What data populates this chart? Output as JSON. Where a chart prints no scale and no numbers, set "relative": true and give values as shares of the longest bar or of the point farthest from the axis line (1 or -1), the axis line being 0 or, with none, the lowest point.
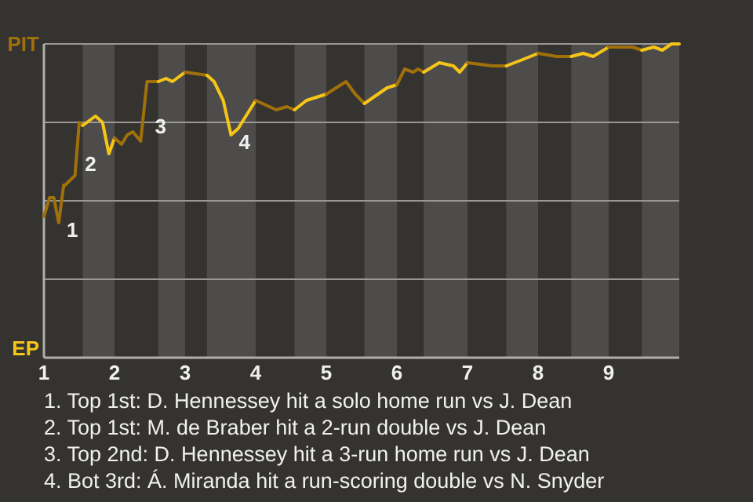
{
  "chart_data": {
    "type": "line",
    "relative": true,
    "xlim": [
      1,
      10
    ],
    "xticks": [
      1,
      2,
      3,
      4,
      5,
      6,
      7,
      8,
      9
    ],
    "marker": "none",
    "line_style": "solid",
    "bands": [
      {
        "axis": "x",
        "from": 1.55,
        "to": 2,
        "color": "#4d4c4a"
      },
      {
        "axis": "x",
        "from": 2.62,
        "to": 3,
        "color": "#4d4c4a"
      },
      {
        "axis": "x",
        "from": 3.31,
        "to": 4,
        "color": "#4d4c4a"
      },
      {
        "axis": "x",
        "from": 4.55,
        "to": 5,
        "color": "#4d4c4a"
      },
      {
        "axis": "x",
        "from": 5.54,
        "to": 6,
        "color": "#4d4c4a"
      },
      {
        "axis": "x",
        "from": 6.38,
        "to": 7,
        "color": "#4d4c4a"
      },
      {
        "axis": "x",
        "from": 7.55,
        "to": 8,
        "color": "#4d4c4a"
      },
      {
        "axis": "x",
        "from": 8.47,
        "to": 9,
        "color": "#4d4c4a"
      },
      {
        "axis": "x",
        "from": 9.47,
        "to": 10,
        "color": "#4d4c4a"
      }
    ],
    "ref_lines": [
      {
        "axis": "y",
        "value": 0.25,
        "color": "#9a9895"
      },
      {
        "axis": "y",
        "value": 0.5,
        "color": "#9a9895"
      },
      {
        "axis": "y",
        "value": 0.75,
        "color": "#9a9895"
      }
    ],
    "series": [
      {
        "color": "#a0700a",
        "x": [
          1,
          1.08,
          1.14,
          1.21,
          1.28,
          1.3,
          1.39,
          1.44,
          1.5,
          1.55
        ],
        "values": [
          0.45,
          0.51,
          0.51,
          0.43,
          0.55,
          0.55,
          0.57,
          0.58,
          0.75,
          0.74
        ]
      },
      {
        "color": "#f5c518",
        "x": [
          1.55,
          1.73,
          1.83,
          1.92,
          2
        ],
        "values": [
          0.74,
          0.77,
          0.75,
          0.65,
          0.7
        ]
      },
      {
        "color": "#a0700a",
        "x": [
          2,
          2.1,
          2.18,
          2.26,
          2.37,
          2.46,
          2.62
        ],
        "values": [
          0.7,
          0.68,
          0.71,
          0.72,
          0.69,
          0.88,
          0.88
        ]
      },
      {
        "color": "#f5c518",
        "x": [
          2.62,
          2.73,
          2.82,
          3
        ],
        "values": [
          0.88,
          0.89,
          0.88,
          0.91
        ]
      },
      {
        "color": "#a0700a",
        "x": [
          3,
          3.31
        ],
        "values": [
          0.91,
          0.9
        ]
      },
      {
        "color": "#f5c518",
        "x": [
          3.31,
          3.41,
          3.54,
          3.65,
          3.75,
          4
        ],
        "values": [
          0.9,
          0.88,
          0.82,
          0.71,
          0.73,
          0.82
        ]
      },
      {
        "color": "#a0700a",
        "x": [
          4,
          4.29,
          4.44,
          4.55
        ],
        "values": [
          0.82,
          0.79,
          0.8,
          0.79
        ]
      },
      {
        "color": "#f5c518",
        "x": [
          4.55,
          4.72,
          5
        ],
        "values": [
          0.79,
          0.82,
          0.84
        ]
      },
      {
        "color": "#a0700a",
        "x": [
          5,
          5.28,
          5.41,
          5.54
        ],
        "values": [
          0.84,
          0.88,
          0.84,
          0.81
        ]
      },
      {
        "color": "#f5c518",
        "x": [
          5.54,
          5.86,
          6
        ],
        "values": [
          0.81,
          0.86,
          0.87
        ]
      },
      {
        "color": "#a0700a",
        "x": [
          6,
          6.11,
          6.23,
          6.3,
          6.38
        ],
        "values": [
          0.87,
          0.92,
          0.91,
          0.92,
          0.91
        ]
      },
      {
        "color": "#f5c518",
        "x": [
          6.38,
          6.6,
          6.8,
          6.89,
          7
        ],
        "values": [
          0.91,
          0.94,
          0.93,
          0.91,
          0.94
        ]
      },
      {
        "color": "#a0700a",
        "x": [
          7,
          7.35,
          7.55
        ],
        "values": [
          0.94,
          0.93,
          0.93
        ]
      },
      {
        "color": "#f5c518",
        "x": [
          7.55,
          7.78,
          8
        ],
        "values": [
          0.93,
          0.95,
          0.97
        ]
      },
      {
        "color": "#a0700a",
        "x": [
          8,
          8.26,
          8.47
        ],
        "values": [
          0.97,
          0.96,
          0.96
        ]
      },
      {
        "color": "#f5c518",
        "x": [
          8.47,
          8.64,
          8.78,
          9
        ],
        "values": [
          0.96,
          0.97,
          0.96,
          0.99
        ]
      },
      {
        "color": "#a0700a",
        "x": [
          9,
          9.34,
          9.47
        ],
        "values": [
          0.99,
          0.99,
          0.98
        ]
      },
      {
        "color": "#f5c518",
        "x": [
          9.47,
          9.64,
          9.76,
          9.89,
          10
        ],
        "values": [
          0.98,
          0.99,
          0.98,
          1,
          1
        ]
      }
    ],
    "annotations": [
      "PIT",
      "EP",
      {
        "text": "1",
        "x": 1.21,
        "y": 0.43
      },
      {
        "text": "2",
        "x": 1.47,
        "y": 0.64
      },
      {
        "text": "3",
        "x": 2.46,
        "y": 0.76
      },
      {
        "text": "4",
        "x": 3.65,
        "y": 0.71
      },
      "1. Top 1st: D. Hennessey hit a solo home run vs J. Dean",
      "2. Top 1st: M. de Braber hit a 2-run double vs J. Dean",
      "3. Top 2nd: D. Hennessey hit a 3-run home run vs J. Dean",
      "4. Bot 3rd: Á. Miranda hit a run-scoring double vs N. Snyder"
    ]
  }
}
